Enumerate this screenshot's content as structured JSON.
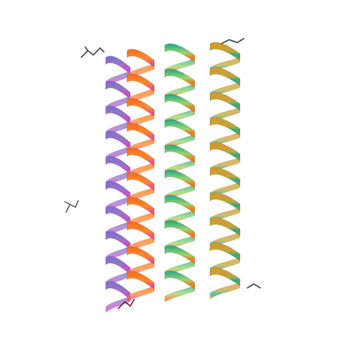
{
  "image": {
    "background": "#ffffff",
    "subject": "protein-cartoon-four-helix-bundle",
    "helices": [
      {
        "name": "helix-a",
        "colors": [
          "#7a6fd0",
          "#9a74c8",
          "#d04cc8"
        ]
      },
      {
        "name": "helix-b",
        "colors": [
          "#f26a1b",
          "#ff8a2a",
          "#e84d8c"
        ]
      },
      {
        "name": "helix-c",
        "colors": [
          "#1fa58a",
          "#9bd56a",
          "#f07b1e"
        ]
      },
      {
        "name": "helix-d",
        "colors": [
          "#d8962b",
          "#c0a63d",
          "#21b08a"
        ]
      }
    ],
    "ligand_color": "#555555"
  }
}
